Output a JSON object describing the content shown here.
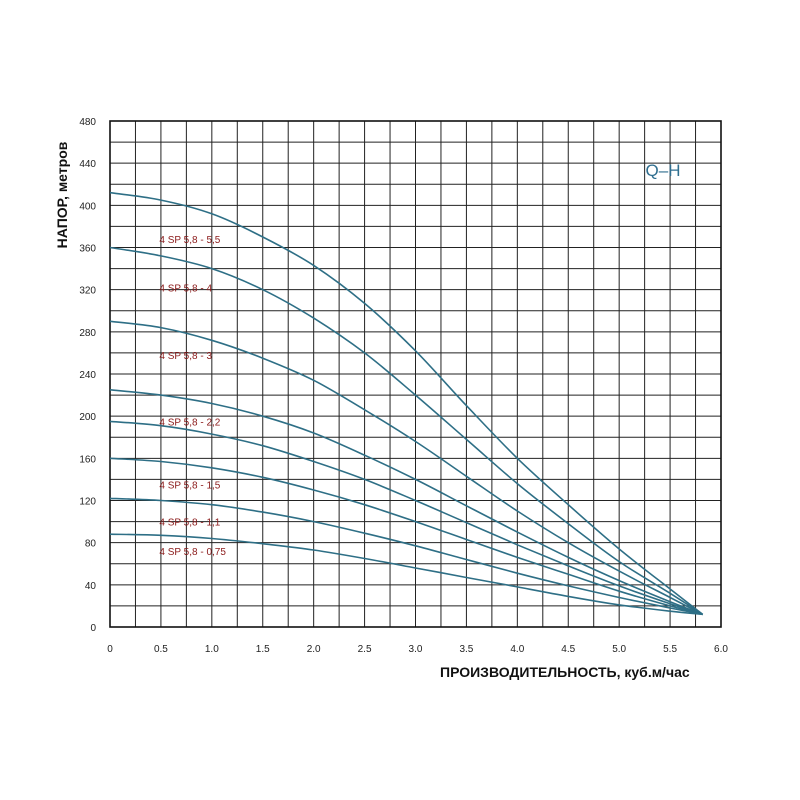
{
  "chart_data": {
    "type": "line",
    "chart_label": "Q–H",
    "xlabel": "ПРОИЗВОДИТЕЛЬНОСТЬ, куб.м/час",
    "ylabel": "НАПОР, метров",
    "xlim": [
      0,
      6.0
    ],
    "ylim": [
      0,
      480
    ],
    "x_ticks": [
      "0",
      "0.5",
      "1.0",
      "1.5",
      "2.0",
      "2.5",
      "3.0",
      "3.5",
      "4.0",
      "4.5",
      "5.0",
      "5.5",
      "6.0"
    ],
    "y_ticks": [
      "0",
      "40",
      "80",
      "120",
      "160",
      "200",
      "240",
      "280",
      "320",
      "360",
      "400",
      "440",
      "480"
    ],
    "grid": true,
    "x": [
      0,
      0.5,
      1.0,
      1.5,
      2.0,
      2.5,
      3.0,
      3.5,
      4.0,
      4.5,
      5.0,
      5.5,
      5.82
    ],
    "series": [
      {
        "values": [
          412,
          405,
          392,
          370,
          343,
          307,
          262,
          210,
          160,
          116,
          74,
          36,
          12
        ]
      },
      {
        "name": "4 SP 5,8 - 5,5",
        "values": [
          360,
          352,
          340,
          320,
          293,
          260,
          220,
          178,
          136,
          98,
          62,
          32,
          12
        ]
      },
      {
        "name": "4 SP 5,8 - 4",
        "values": [
          290,
          284,
          272,
          255,
          234,
          206,
          176,
          143,
          110,
          80,
          53,
          28,
          12
        ]
      },
      {
        "name": "4 SP 5,8 - 3",
        "values": [
          225,
          220,
          212,
          200,
          184,
          163,
          140,
          115,
          90,
          66,
          44,
          24,
          12
        ]
      },
      {
        "name": "4 SP 5,8 - 2,2",
        "values": [
          195,
          191,
          183,
          172,
          157,
          140,
          120,
          99,
          78,
          58,
          39,
          22,
          12
        ]
      },
      {
        "name": "4 SP 5,8 - 1,5",
        "values": [
          160,
          157,
          151,
          142,
          130,
          116,
          100,
          83,
          66,
          50,
          34,
          20,
          12
        ]
      },
      {
        "name": "4 SP 5,8 - 1,1",
        "values": [
          122,
          120,
          116,
          109,
          100,
          89,
          77,
          64,
          51,
          39,
          28,
          18,
          12
        ]
      },
      {
        "name": "4 SP 5,8 - 0,75",
        "values": [
          88,
          87,
          84,
          79,
          73,
          65,
          56,
          47,
          38,
          29,
          21,
          15,
          12
        ]
      }
    ],
    "line_color": "#2e6f86",
    "label_color": "#8b1a1a",
    "label_x": 0.75,
    "label_y": [
      368,
      322,
      258,
      195,
      135,
      100,
      72
    ]
  }
}
